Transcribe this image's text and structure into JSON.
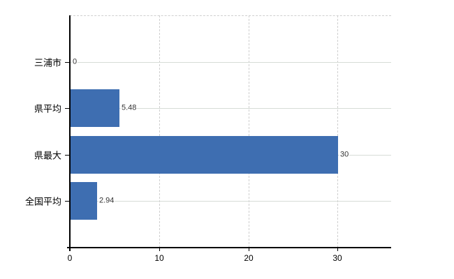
{
  "chart_data": {
    "type": "bar",
    "orientation": "horizontal",
    "title": "",
    "xlabel": "",
    "ylabel": "",
    "categories": [
      "三浦市",
      "県平均",
      "県最大",
      "全国平均"
    ],
    "values": [
      0,
      5.48,
      30,
      2.94
    ],
    "value_labels": [
      "0",
      "5.48",
      "30",
      "2.94"
    ],
    "x_ticks": [
      0,
      10,
      20,
      30
    ],
    "x_tick_labels": [
      "0",
      "10",
      "20",
      "30"
    ],
    "xlim": [
      0,
      36
    ],
    "grid": {
      "vertical_gridlines": "dashed",
      "horizontal_category_lines": "solid",
      "top_border": "dashed"
    },
    "legend_position": "none"
  },
  "colors": {
    "bar": "#3e6eb1",
    "axis": "#000000",
    "gridline_horizontal": "#d6dcd6",
    "gridline_vertical": "#cfcfcf",
    "background": "#ffffff",
    "category_text": "#000000",
    "value_text": "#333333",
    "tick_text": "#000000"
  }
}
